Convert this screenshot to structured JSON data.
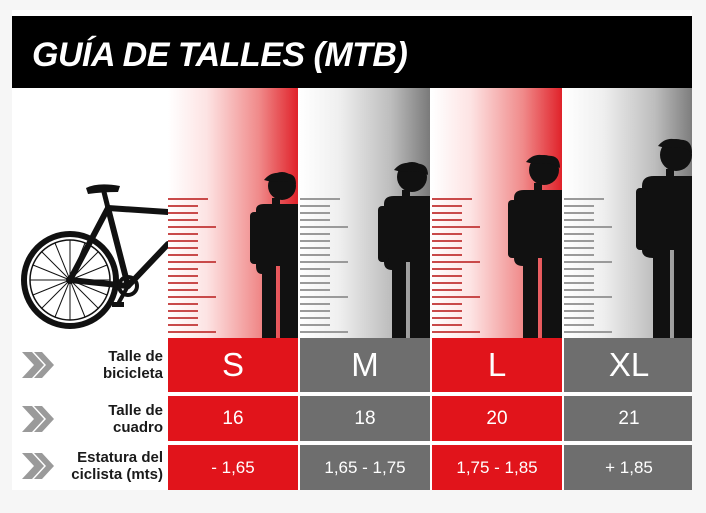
{
  "title": "GUÍA DE TALLES (MTB)",
  "colors": {
    "header_bg": "#000000",
    "red": "#e1141b",
    "gray": "#6e6e6e",
    "label_text": "#1a1a1a"
  },
  "sizes": [
    "S",
    "M",
    "L",
    "XL"
  ],
  "rows": [
    {
      "label": [
        "Talle de",
        "bicicleta"
      ],
      "values": [
        "S",
        "M",
        "L",
        "XL"
      ]
    },
    {
      "label": [
        "Talle de",
        "cuadro"
      ],
      "values": [
        "16",
        "18",
        "20",
        "21"
      ]
    },
    {
      "label": [
        "Estatura del",
        "ciclista (mts)"
      ],
      "values": [
        "- 1,65",
        "1,65 - 1,75",
        "1,75 - 1,85",
        "+ 1,85"
      ]
    }
  ],
  "icons": {
    "bike": "bicycle-icon",
    "person": "cyclist-silhouette-icon",
    "chevron": "double-chevron-right-icon"
  }
}
